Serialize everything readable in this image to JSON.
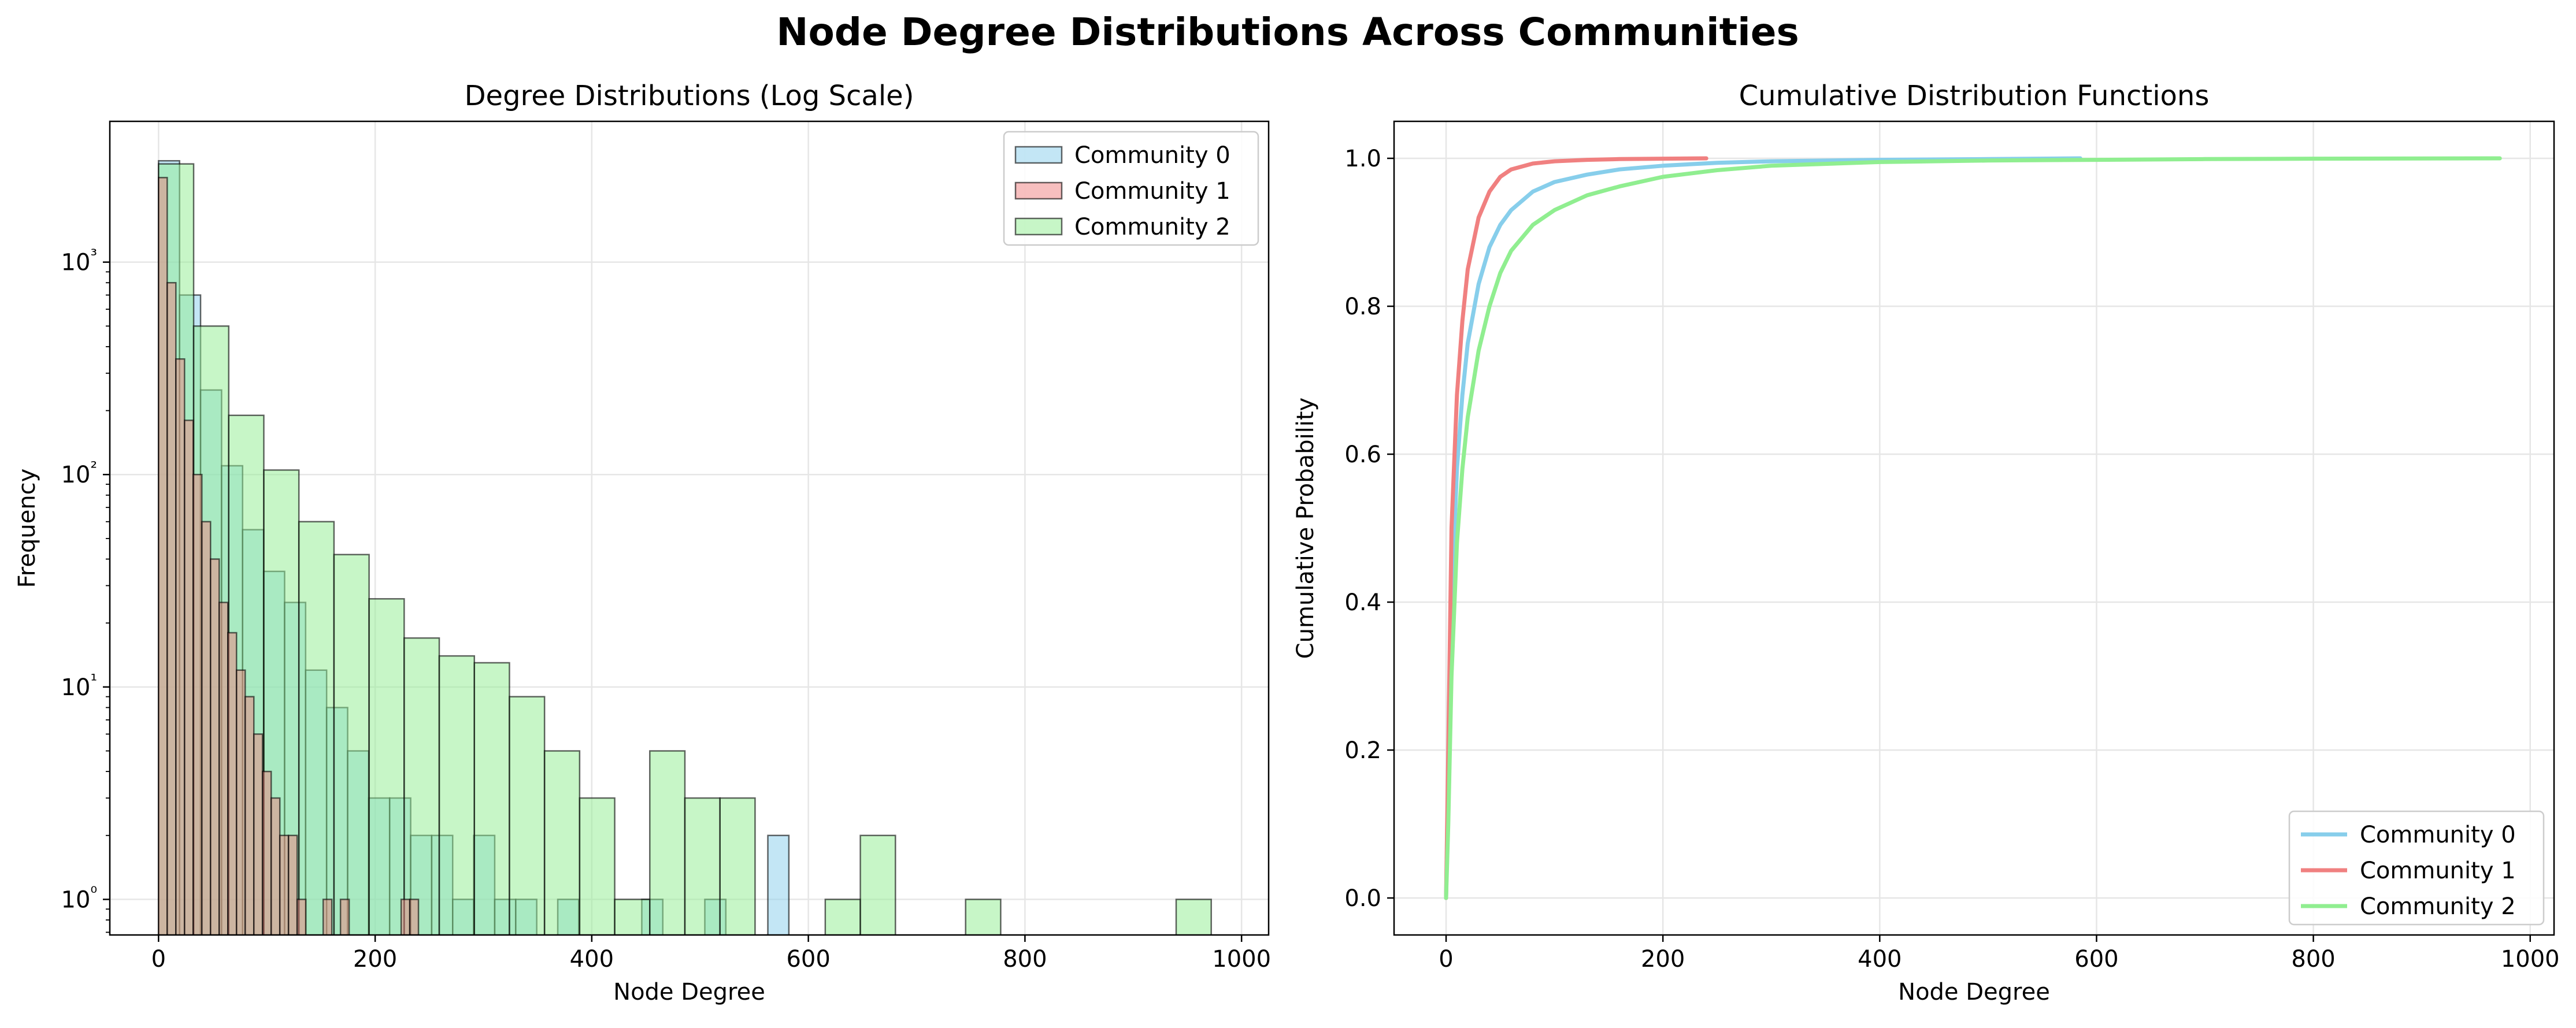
{
  "figure": {
    "suptitle": "Node Degree Distributions Across Communities"
  },
  "colors": {
    "community_0": "#87ceeb",
    "community_1": "#f08080",
    "community_2": "#90ee90",
    "grid": "#e6e6e6",
    "bar_edge": "#000000"
  },
  "chart_data": [
    {
      "type": "bar",
      "subtype": "histogram",
      "title": "Degree Distributions (Log Scale)",
      "xlabel": "Node Degree",
      "ylabel": "Frequency",
      "yscale": "log",
      "xlim": [
        -45,
        1025
      ],
      "ylim": [
        0.68,
        4600
      ],
      "xticks": [
        0,
        200,
        400,
        600,
        800,
        1000
      ],
      "xtick_labels": [
        "0",
        "200",
        "400",
        "600",
        "800",
        "1000"
      ],
      "yticks": [
        1,
        10,
        100,
        1000
      ],
      "ytick_labels": [
        "10⁰",
        "10¹",
        "10²",
        "10³"
      ],
      "grid": true,
      "legend_position": "upper right",
      "series": [
        {
          "name": "Community 0",
          "color_key": "community_0",
          "bin_width": 19.4,
          "bins": [
            {
              "x": 0,
              "count": 3000
            },
            {
              "x": 19.4,
              "count": 700
            },
            {
              "x": 38.8,
              "count": 250
            },
            {
              "x": 58.2,
              "count": 110
            },
            {
              "x": 77.6,
              "count": 55
            },
            {
              "x": 97,
              "count": 35
            },
            {
              "x": 116.4,
              "count": 25
            },
            {
              "x": 135.8,
              "count": 12
            },
            {
              "x": 155.2,
              "count": 8
            },
            {
              "x": 174.6,
              "count": 5
            },
            {
              "x": 194,
              "count": 3
            },
            {
              "x": 213.4,
              "count": 3
            },
            {
              "x": 232.8,
              "count": 2
            },
            {
              "x": 252.2,
              "count": 2
            },
            {
              "x": 271.6,
              "count": 1
            },
            {
              "x": 291,
              "count": 2
            },
            {
              "x": 310.4,
              "count": 1
            },
            {
              "x": 329.8,
              "count": 1
            },
            {
              "x": 368.6,
              "count": 1
            },
            {
              "x": 446.2,
              "count": 1
            },
            {
              "x": 504.4,
              "count": 1
            },
            {
              "x": 562.6,
              "count": 2
            }
          ]
        },
        {
          "name": "Community 1",
          "color_key": "community_1",
          "bin_width": 8.0,
          "bins": [
            {
              "x": 0,
              "count": 2500
            },
            {
              "x": 8,
              "count": 800
            },
            {
              "x": 16,
              "count": 350
            },
            {
              "x": 24,
              "count": 180
            },
            {
              "x": 32,
              "count": 100
            },
            {
              "x": 40,
              "count": 60
            },
            {
              "x": 48,
              "count": 40
            },
            {
              "x": 56,
              "count": 25
            },
            {
              "x": 64,
              "count": 18
            },
            {
              "x": 72,
              "count": 12
            },
            {
              "x": 80,
              "count": 9
            },
            {
              "x": 88,
              "count": 6
            },
            {
              "x": 96,
              "count": 4
            },
            {
              "x": 104,
              "count": 3
            },
            {
              "x": 112,
              "count": 2
            },
            {
              "x": 120,
              "count": 2
            },
            {
              "x": 128,
              "count": 1
            },
            {
              "x": 152,
              "count": 1
            },
            {
              "x": 168,
              "count": 1
            },
            {
              "x": 224,
              "count": 1
            },
            {
              "x": 232,
              "count": 1
            }
          ]
        },
        {
          "name": "Community 2",
          "color_key": "community_2",
          "bin_width": 32.4,
          "bins": [
            {
              "x": 0,
              "count": 2900
            },
            {
              "x": 32.4,
              "count": 500
            },
            {
              "x": 64.8,
              "count": 190
            },
            {
              "x": 97.2,
              "count": 105
            },
            {
              "x": 129.6,
              "count": 60
            },
            {
              "x": 162,
              "count": 42
            },
            {
              "x": 194.4,
              "count": 26
            },
            {
              "x": 226.8,
              "count": 17
            },
            {
              "x": 259.2,
              "count": 14
            },
            {
              "x": 291.6,
              "count": 13
            },
            {
              "x": 324,
              "count": 9
            },
            {
              "x": 356.4,
              "count": 5
            },
            {
              "x": 388.8,
              "count": 3
            },
            {
              "x": 421.2,
              "count": 1
            },
            {
              "x": 453.6,
              "count": 5
            },
            {
              "x": 486,
              "count": 3
            },
            {
              "x": 518.4,
              "count": 3
            },
            {
              "x": 615.6,
              "count": 1
            },
            {
              "x": 648,
              "count": 2
            },
            {
              "x": 745.2,
              "count": 1
            },
            {
              "x": 939.6,
              "count": 1
            }
          ]
        }
      ]
    },
    {
      "type": "line",
      "title": "Cumulative Distribution Functions",
      "xlabel": "Node Degree",
      "ylabel": "Cumulative Probability",
      "xlim": [
        -48,
        1022
      ],
      "ylim": [
        -0.05,
        1.05
      ],
      "xticks": [
        0,
        200,
        400,
        600,
        800,
        1000
      ],
      "xtick_labels": [
        "0",
        "200",
        "400",
        "600",
        "800",
        "1000"
      ],
      "yticks": [
        0.0,
        0.2,
        0.4,
        0.6,
        0.8,
        1.0
      ],
      "ytick_labels": [
        "0.0",
        "0.2",
        "0.4",
        "0.6",
        "0.8",
        "1.0"
      ],
      "grid": true,
      "legend_position": "lower right",
      "series": [
        {
          "name": "Community 0",
          "color_key": "community_0",
          "x": [
            0,
            2,
            5,
            10,
            15,
            20,
            30,
            40,
            50,
            60,
            80,
            100,
            130,
            160,
            200,
            250,
            300,
            400,
            500,
            585
          ],
          "y": [
            0,
            0.15,
            0.4,
            0.58,
            0.68,
            0.75,
            0.83,
            0.88,
            0.91,
            0.93,
            0.955,
            0.968,
            0.978,
            0.985,
            0.99,
            0.994,
            0.996,
            0.998,
            0.999,
            1.0
          ]
        },
        {
          "name": "Community 1",
          "color_key": "community_1",
          "x": [
            0,
            2,
            5,
            10,
            15,
            20,
            30,
            40,
            50,
            60,
            80,
            100,
            130,
            160,
            200,
            240
          ],
          "y": [
            0,
            0.2,
            0.5,
            0.68,
            0.78,
            0.85,
            0.92,
            0.955,
            0.975,
            0.985,
            0.993,
            0.996,
            0.998,
            0.999,
            0.9995,
            1.0
          ]
        },
        {
          "name": "Community 2",
          "color_key": "community_2",
          "x": [
            0,
            2,
            5,
            10,
            15,
            20,
            30,
            40,
            50,
            60,
            80,
            100,
            130,
            160,
            200,
            250,
            300,
            400,
            500,
            600,
            700,
            800,
            972
          ],
          "y": [
            0,
            0.1,
            0.3,
            0.48,
            0.58,
            0.65,
            0.74,
            0.8,
            0.845,
            0.875,
            0.91,
            0.93,
            0.95,
            0.962,
            0.975,
            0.984,
            0.99,
            0.995,
            0.997,
            0.998,
            0.999,
            0.9995,
            1.0
          ]
        }
      ]
    }
  ]
}
